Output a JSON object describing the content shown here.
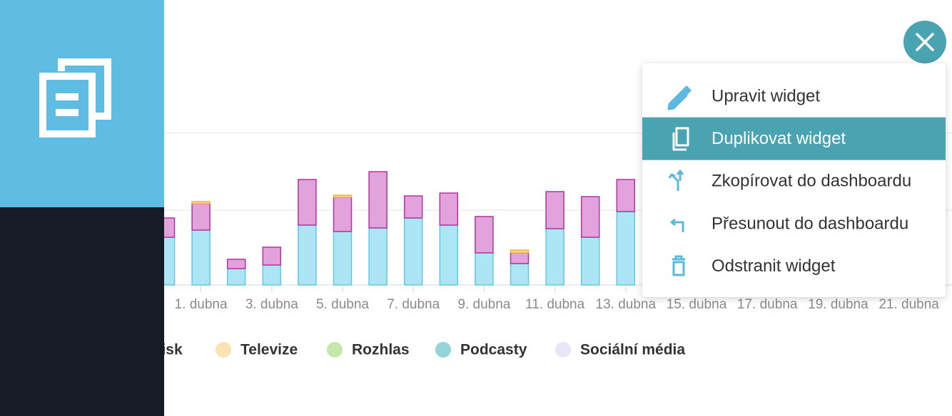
{
  "chart_data": {
    "type": "bar",
    "stacked": true,
    "categories": [
      null,
      "1. dubna",
      null,
      "3. dubna",
      null,
      "5. dubna",
      null,
      "7. dubna",
      null,
      "9. dubna",
      null,
      "11. dubna",
      null,
      "13. dubna",
      null,
      "15. dubna",
      null,
      "17. dubna",
      null,
      "19. dubna",
      null,
      "21. dubna"
    ],
    "series": [
      {
        "color": "#ace6f4",
        "stroke": "#62c6e4",
        "values": [
          67,
          77,
          23,
          28,
          84,
          75,
          80,
          94,
          84,
          45,
          30,
          79,
          67,
          103,
          null,
          null,
          null,
          null,
          null,
          null,
          null,
          null
        ]
      },
      {
        "color": "#e2a3dc",
        "stroke": "#b2349f",
        "values": [
          27,
          37,
          13,
          25,
          64,
          48,
          79,
          31,
          45,
          51,
          15,
          52,
          57,
          45,
          null,
          null,
          null,
          null,
          null,
          null,
          null,
          null
        ]
      },
      {
        "color": "#fbd98e",
        "stroke": "#f0b43c",
        "values": [
          null,
          3,
          null,
          null,
          null,
          3,
          null,
          null,
          null,
          null,
          4,
          null,
          null,
          null,
          null,
          null,
          null,
          null,
          null,
          null,
          null,
          null
        ]
      }
    ],
    "ylim": [
      0,
      213
    ]
  },
  "legend": [
    {
      "name": "Tisk",
      "color": "#e2a3dc"
    },
    {
      "name": "Televize",
      "color": "#fbe3b3"
    },
    {
      "name": "Rozhlas",
      "color": "#c4e8aa"
    },
    {
      "name": "Podcasty",
      "color": "#93d5d8"
    },
    {
      "name": "Sociální média",
      "color": "#e7e7f7"
    }
  ],
  "menu": {
    "active": 1,
    "items": [
      "Upravit widget",
      "Duplikovat widget",
      "Zkopírovat do dashboardu",
      "Přesunout do dashboardu",
      "Odstranit widget"
    ]
  }
}
